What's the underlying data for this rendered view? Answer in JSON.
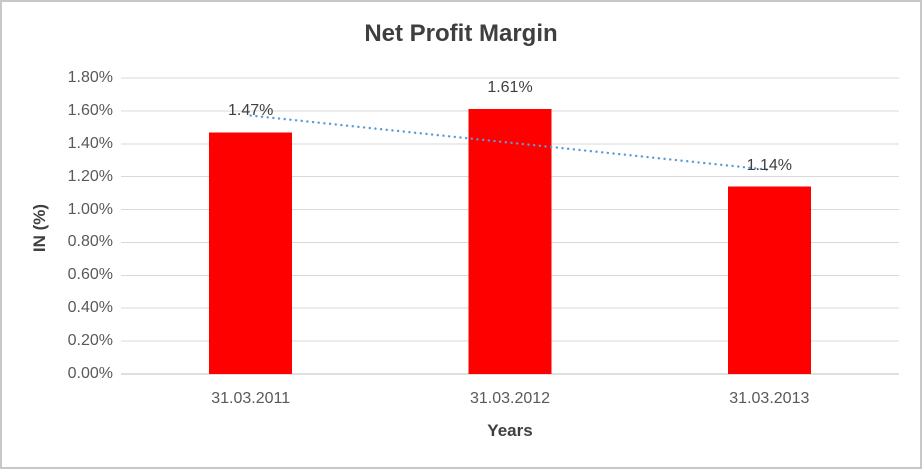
{
  "chart_data": {
    "type": "bar",
    "title": "Net Profit Margin",
    "xlabel": "Years",
    "ylabel": "IN (%)",
    "categories": [
      "31.03.2011",
      "31.03.2012",
      "31.03.2013"
    ],
    "series": [
      {
        "name": "Net Profit Margin",
        "values": [
          1.47,
          1.61,
          1.14
        ]
      }
    ],
    "data_labels": [
      "1.47%",
      "1.61%",
      "1.14%"
    ],
    "y_ticks": [
      "0.00%",
      "0.20%",
      "0.40%",
      "0.60%",
      "0.80%",
      "1.00%",
      "1.20%",
      "1.40%",
      "1.60%",
      "1.80%"
    ],
    "ylim": [
      0,
      1.8
    ],
    "y_tick_step": 0.2,
    "grid": true,
    "legend": "none",
    "trendline": {
      "type": "linear",
      "style": "dotted"
    },
    "colors": {
      "bar": "#FF0000",
      "trendline": "#5B9BD5",
      "gridline": "#D9D9D9",
      "axis_line": "#BFBFBF",
      "tick_label": "#595959",
      "title": "#3F3F3F",
      "axis_title": "#3F3F3F",
      "data_label": "#404040",
      "border": "#C8C8C8",
      "background": "#FFFFFF"
    }
  }
}
